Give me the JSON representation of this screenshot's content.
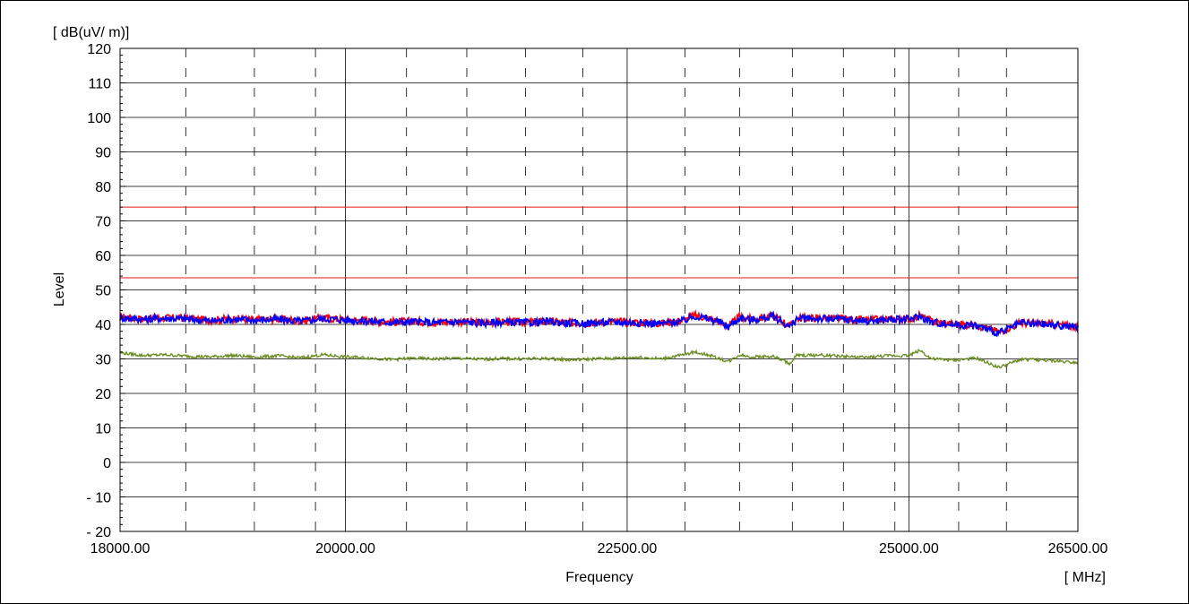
{
  "chart_data": {
    "type": "line",
    "y_unit_label": "[ dB(uV/ m)]",
    "x_unit_label": "[ MHz]",
    "xlabel": "Frequency",
    "ylabel": "Level",
    "xlim": [
      18000,
      26500
    ],
    "ylim": [
      -20,
      120
    ],
    "grid": true,
    "y_ticks": [
      -20,
      -10,
      0,
      10,
      20,
      30,
      40,
      50,
      60,
      70,
      80,
      90,
      100,
      110,
      120
    ],
    "y_tick_labels": [
      "- 20",
      "- 10",
      "0",
      "10",
      "20",
      "30",
      "40",
      "50",
      "60",
      "70",
      "80",
      "90",
      "100",
      "110",
      "120"
    ],
    "x_tick_labels": [
      {
        "value": 18000,
        "label": "18000.00"
      },
      {
        "value": 20000,
        "label": "20000.00"
      },
      {
        "value": 22500,
        "label": "22500.00"
      },
      {
        "value": 25000,
        "label": "25000.00"
      },
      {
        "value": 26500,
        "label": "26500.00"
      }
    ],
    "major_x_grid": [
      20000,
      22500,
      25000
    ],
    "minor_x_grid": [
      18583,
      19192,
      19734,
      20542,
      21077,
      21597,
      22106,
      23013,
      23497,
      23966,
      24419,
      24876,
      25442,
      25866
    ],
    "limit_lines": [
      {
        "value": 74,
        "color": "#e41a1c"
      },
      {
        "value": 53.5,
        "color": "#e41a1c"
      }
    ],
    "series": [
      {
        "color": "#ff0000",
        "x": [
          18000,
          18200,
          18400,
          18600,
          18800,
          19000,
          19200,
          19400,
          19600,
          19800,
          20000,
          20200,
          20400,
          20600,
          20800,
          21000,
          21200,
          21400,
          21600,
          21800,
          22000,
          22200,
          22400,
          22600,
          22800,
          23000,
          23100,
          23200,
          23300,
          23400,
          23500,
          23600,
          23800,
          23950,
          24000,
          24200,
          24400,
          24600,
          24800,
          25000,
          25100,
          25200,
          25400,
          25600,
          25800,
          26000,
          26200,
          26500
        ],
        "values": [
          42.2,
          41.6,
          41.9,
          41.8,
          41.2,
          41.7,
          41.3,
          41.6,
          41.0,
          41.9,
          41.4,
          41.1,
          40.7,
          40.9,
          40.6,
          40.9,
          40.5,
          40.8,
          40.6,
          40.9,
          40.4,
          40.5,
          40.8,
          40.6,
          40.3,
          41.2,
          42.6,
          42.0,
          41.0,
          39.5,
          42.2,
          41.5,
          42.5,
          39.5,
          41.8,
          41.9,
          41.6,
          41.2,
          41.5,
          41.6,
          42.5,
          40.9,
          40.1,
          39.8,
          37.8,
          40.5,
          40.2,
          39.4
        ]
      },
      {
        "color": "#0000ff",
        "x": [
          18000,
          18200,
          18400,
          18600,
          18800,
          19000,
          19200,
          19400,
          19600,
          19800,
          20000,
          20200,
          20400,
          20600,
          20800,
          21000,
          21200,
          21400,
          21600,
          21800,
          22000,
          22200,
          22400,
          22600,
          22800,
          23000,
          23100,
          23200,
          23300,
          23400,
          23500,
          23600,
          23800,
          23950,
          24000,
          24200,
          24400,
          24600,
          24800,
          25000,
          25100,
          25200,
          25400,
          25600,
          25800,
          26000,
          26200,
          26500
        ],
        "values": [
          42.0,
          41.5,
          41.8,
          41.6,
          41.0,
          41.5,
          41.2,
          41.5,
          40.9,
          41.7,
          41.3,
          41.0,
          40.6,
          40.8,
          40.5,
          40.8,
          40.4,
          40.7,
          40.5,
          40.8,
          40.3,
          40.4,
          40.7,
          40.5,
          40.2,
          41.0,
          42.4,
          41.8,
          40.9,
          39.3,
          42.0,
          41.3,
          42.3,
          39.2,
          41.6,
          41.7,
          41.5,
          41.0,
          41.3,
          41.5,
          42.3,
          40.7,
          39.9,
          39.6,
          37.5,
          40.3,
          40.0,
          39.2
        ]
      },
      {
        "color": "#6b8e23",
        "x": [
          18000,
          18200,
          18400,
          18600,
          18800,
          19000,
          19200,
          19400,
          19600,
          19800,
          20000,
          20200,
          20400,
          20600,
          20800,
          21000,
          21200,
          21400,
          21600,
          21800,
          22000,
          22200,
          22400,
          22600,
          22800,
          23000,
          23100,
          23200,
          23300,
          23400,
          23500,
          23600,
          23800,
          23950,
          24000,
          24200,
          24400,
          24600,
          24800,
          25000,
          25100,
          25200,
          25400,
          25600,
          25800,
          26000,
          26200,
          26500
        ],
        "values": [
          31.8,
          31.0,
          31.2,
          30.8,
          30.6,
          31.0,
          30.5,
          30.9,
          30.3,
          31.2,
          30.6,
          30.3,
          29.8,
          30.2,
          30.0,
          30.2,
          29.9,
          30.1,
          30.0,
          30.1,
          29.7,
          30.0,
          30.2,
          30.5,
          30.0,
          31.2,
          32.0,
          31.3,
          30.3,
          29.2,
          31.2,
          30.6,
          30.7,
          28.6,
          31.0,
          31.1,
          30.8,
          30.4,
          30.9,
          31.0,
          32.5,
          30.0,
          29.6,
          30.2,
          27.5,
          29.9,
          29.6,
          29.0
        ]
      }
    ]
  }
}
